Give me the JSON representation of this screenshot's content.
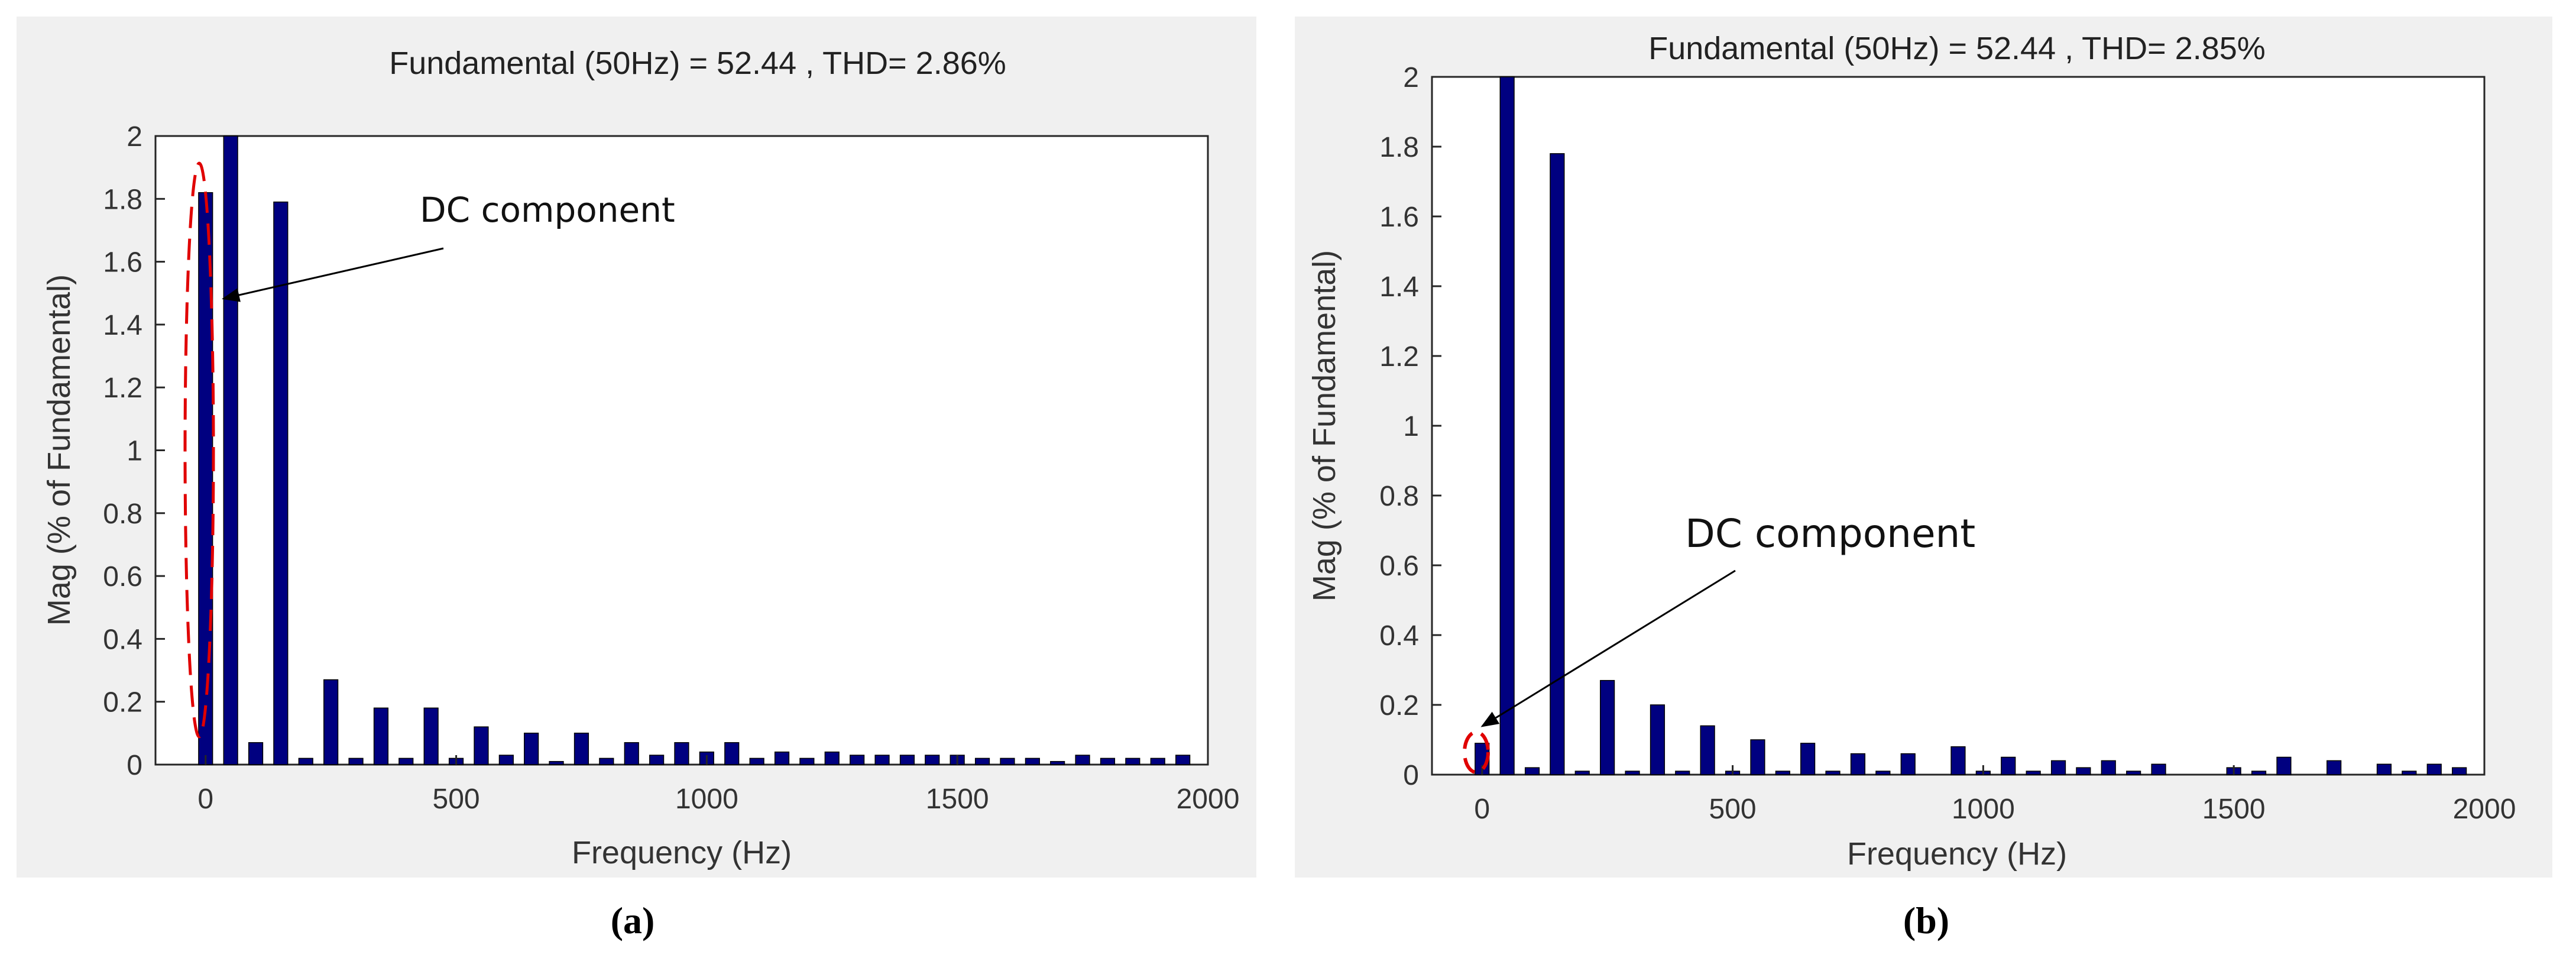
{
  "chart_data": [
    {
      "type": "bar",
      "panel_label": "(a)",
      "title": "Fundamental (50Hz) = 52.44 , THD= 2.86%",
      "xlabel": "Frequency (Hz)",
      "ylabel": "Mag (% of Fundamental)",
      "xlim": [
        -100,
        2000
      ],
      "ylim": [
        0,
        2
      ],
      "xticks": [
        "0",
        "500",
        "1000",
        "1500",
        "2000"
      ],
      "yticks": [
        "0",
        "0.2",
        "0.4",
        "0.6",
        "0.8",
        "1",
        "1.2",
        "1.4",
        "1.6",
        "1.8",
        "2"
      ],
      "grid": false,
      "bar_color": "#000080",
      "annotation": {
        "text": "DC component",
        "target_hz": 0,
        "highlight_color": "#e00000"
      },
      "x": [
        0,
        50,
        100,
        150,
        200,
        250,
        300,
        350,
        400,
        450,
        500,
        550,
        600,
        650,
        700,
        750,
        800,
        850,
        900,
        950,
        1000,
        1050,
        1100,
        1150,
        1200,
        1250,
        1300,
        1350,
        1400,
        1450,
        1500,
        1550,
        1600,
        1650,
        1700,
        1750,
        1800,
        1850,
        1900,
        1950
      ],
      "values": [
        1.82,
        2.0,
        0.07,
        1.79,
        0.02,
        0.27,
        0.02,
        0.18,
        0.02,
        0.18,
        0.02,
        0.12,
        0.03,
        0.1,
        0.01,
        0.1,
        0.02,
        0.07,
        0.03,
        0.07,
        0.04,
        0.07,
        0.02,
        0.04,
        0.02,
        0.04,
        0.03,
        0.03,
        0.03,
        0.03,
        0.03,
        0.02,
        0.02,
        0.02,
        0.01,
        0.03,
        0.02,
        0.02,
        0.02,
        0.03
      ]
    },
    {
      "type": "bar",
      "panel_label": "(b)",
      "title": "Fundamental (50Hz) = 52.44 , THD= 2.85%",
      "xlabel": "Frequency (Hz)",
      "ylabel": "Mag (% of Fundamental)",
      "xlim": [
        -100,
        2000
      ],
      "ylim": [
        0,
        2
      ],
      "xticks": [
        "0",
        "500",
        "1000",
        "1500",
        "2000"
      ],
      "yticks": [
        "0",
        "0.2",
        "0.4",
        "0.6",
        "0.8",
        "1",
        "1.2",
        "1.4",
        "1.6",
        "1.8",
        "2"
      ],
      "grid": false,
      "bar_color": "#000080",
      "annotation": {
        "text": "DC component",
        "target_hz": 0,
        "highlight_color": "#e00000"
      },
      "x": [
        0,
        50,
        100,
        150,
        200,
        250,
        300,
        350,
        400,
        450,
        500,
        550,
        600,
        650,
        700,
        750,
        800,
        850,
        900,
        950,
        1000,
        1050,
        1100,
        1150,
        1200,
        1250,
        1300,
        1350,
        1400,
        1450,
        1500,
        1550,
        1600,
        1650,
        1700,
        1750,
        1800,
        1850,
        1900,
        1950
      ],
      "values": [
        0.09,
        2.0,
        0.02,
        1.78,
        0.01,
        0.27,
        0.01,
        0.2,
        0.01,
        0.14,
        0.01,
        0.1,
        0.01,
        0.09,
        0.01,
        0.06,
        0.01,
        0.06,
        0.0,
        0.08,
        0.01,
        0.05,
        0.01,
        0.04,
        0.02,
        0.04,
        0.01,
        0.03,
        0.0,
        0.0,
        0.02,
        0.01,
        0.05,
        0.0,
        0.04,
        0.0,
        0.03,
        0.01,
        0.03,
        0.02
      ]
    }
  ]
}
